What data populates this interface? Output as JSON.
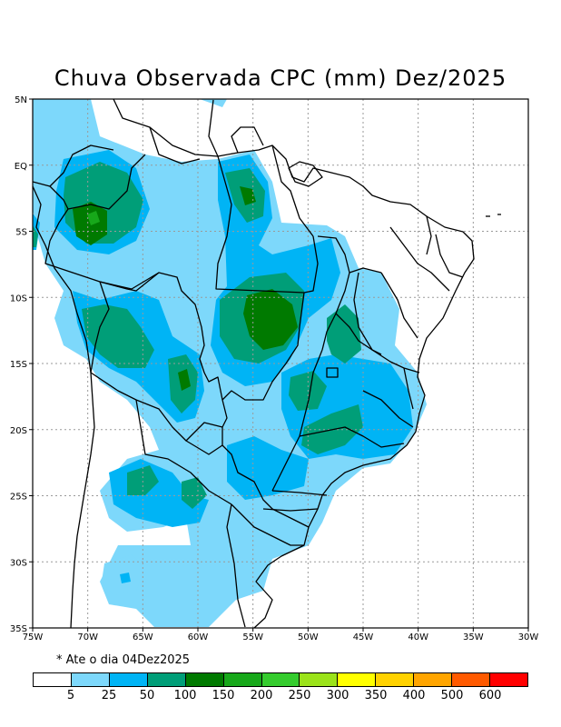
{
  "title": "Chuva Observada CPC (mm) Dez/2025",
  "note": "* Ate o dia 04Dez2025",
  "map": {
    "lon_range": [
      -75,
      -30
    ],
    "lat_range": [
      -35,
      5
    ],
    "lon_ticks": [
      {
        "value": -75,
        "label": "75W"
      },
      {
        "value": -70,
        "label": "70W"
      },
      {
        "value": -65,
        "label": "65W"
      },
      {
        "value": -60,
        "label": "60W"
      },
      {
        "value": -55,
        "label": "55W"
      },
      {
        "value": -50,
        "label": "50W"
      },
      {
        "value": -45,
        "label": "45W"
      },
      {
        "value": -40,
        "label": "40W"
      },
      {
        "value": -35,
        "label": "35W"
      },
      {
        "value": -30,
        "label": "30W"
      }
    ],
    "lat_ticks": [
      {
        "value": 5,
        "label": "5N"
      },
      {
        "value": 0,
        "label": "EQ"
      },
      {
        "value": -5,
        "label": "5S"
      },
      {
        "value": -10,
        "label": "10S"
      },
      {
        "value": -15,
        "label": "15S"
      },
      {
        "value": -20,
        "label": "20S"
      },
      {
        "value": -25,
        "label": "25S"
      },
      {
        "value": -30,
        "label": "30S"
      },
      {
        "value": -35,
        "label": "35S"
      }
    ]
  },
  "legend": {
    "colors": [
      "#ffffff",
      "#7dd8fb",
      "#00b4f5",
      "#009e78",
      "#007a00",
      "#17a81a",
      "#35cc2e",
      "#9be31a",
      "#ffff00",
      "#ffd200",
      "#ffa500",
      "#ff5a00",
      "#ff0000"
    ],
    "labels": [
      "5",
      "25",
      "50",
      "100",
      "150",
      "200",
      "250",
      "300",
      "350",
      "400",
      "500",
      "600"
    ]
  }
}
